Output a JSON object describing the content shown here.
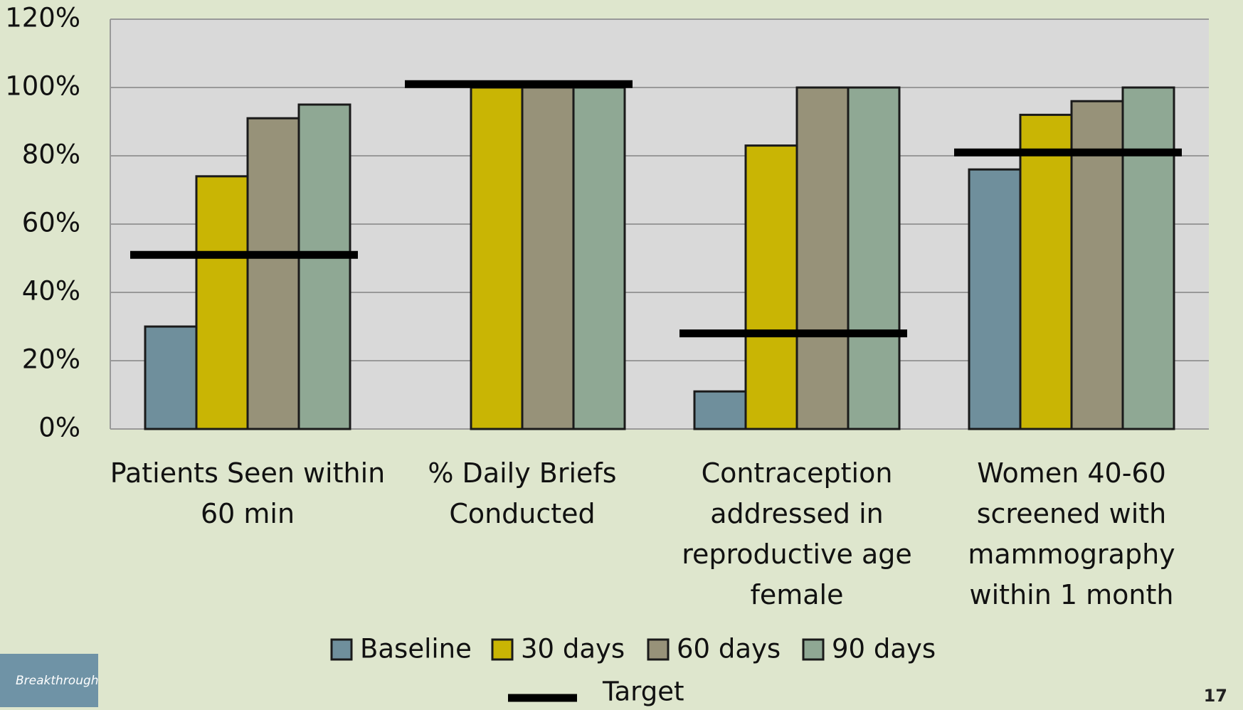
{
  "chart_data": {
    "type": "bar",
    "categories": [
      "Patients Seen within 60 min",
      "% Daily Briefs Conducted",
      "Contraception addressed in reproductive age female",
      "Women 40-60 screened with mammography within 1 month"
    ],
    "series": [
      {
        "name": "Baseline",
        "color": "#6f8f9c",
        "values": [
          30,
          null,
          11,
          76
        ]
      },
      {
        "name": "30 days",
        "color": "#c9b504",
        "values": [
          74,
          100,
          83,
          92
        ]
      },
      {
        "name": "60 days",
        "color": "#979279",
        "values": [
          91,
          100,
          100,
          96
        ]
      },
      {
        "name": "90 days",
        "color": "#8fa894",
        "values": [
          95,
          100,
          100,
          100
        ]
      }
    ],
    "target": {
      "name": "Target",
      "color": "#000000",
      "values": [
        51,
        101,
        28,
        81
      ]
    },
    "ylim": [
      0,
      120
    ],
    "yticks": [
      {
        "value": 0,
        "label": "0%"
      },
      {
        "value": 20,
        "label": "20%"
      },
      {
        "value": 40,
        "label": "40%"
      },
      {
        "value": 60,
        "label": "60%"
      },
      {
        "value": 80,
        "label": "80%"
      },
      {
        "value": 100,
        "label": "100%"
      },
      {
        "value": 120,
        "label": "120%"
      }
    ],
    "grid": true,
    "legend_position": "bottom"
  },
  "logo_text": "Breakthrough",
  "page_number": "17"
}
